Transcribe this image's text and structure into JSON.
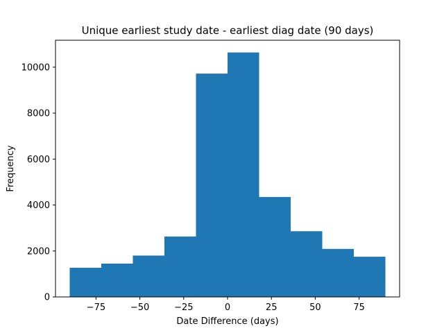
{
  "chart_data": {
    "type": "bar",
    "title": "Unique earliest study date - earliest diag date (90 days)",
    "xlabel": "Date Difference (days)",
    "ylabel": "Frequency",
    "bin_edges": [
      -90,
      -72,
      -54,
      -36,
      -18,
      0,
      18,
      36,
      54,
      72,
      90
    ],
    "values": [
      1270,
      1450,
      1800,
      2630,
      9720,
      10640,
      4350,
      2860,
      2090,
      1750
    ],
    "xlim": [
      -98.1,
      98.1
    ],
    "ylim": [
      0,
      11172
    ],
    "xticks": [
      -75,
      -50,
      -25,
      0,
      25,
      50,
      75
    ],
    "xtick_labels": [
      "−75",
      "−50",
      "−25",
      "0",
      "25",
      "50",
      "75"
    ],
    "yticks": [
      0,
      2000,
      4000,
      6000,
      8000,
      10000
    ],
    "ytick_labels": [
      "0",
      "2000",
      "4000",
      "6000",
      "8000",
      "10000"
    ],
    "bar_color": "#1f77b4",
    "grid": false,
    "legend": "none"
  }
}
